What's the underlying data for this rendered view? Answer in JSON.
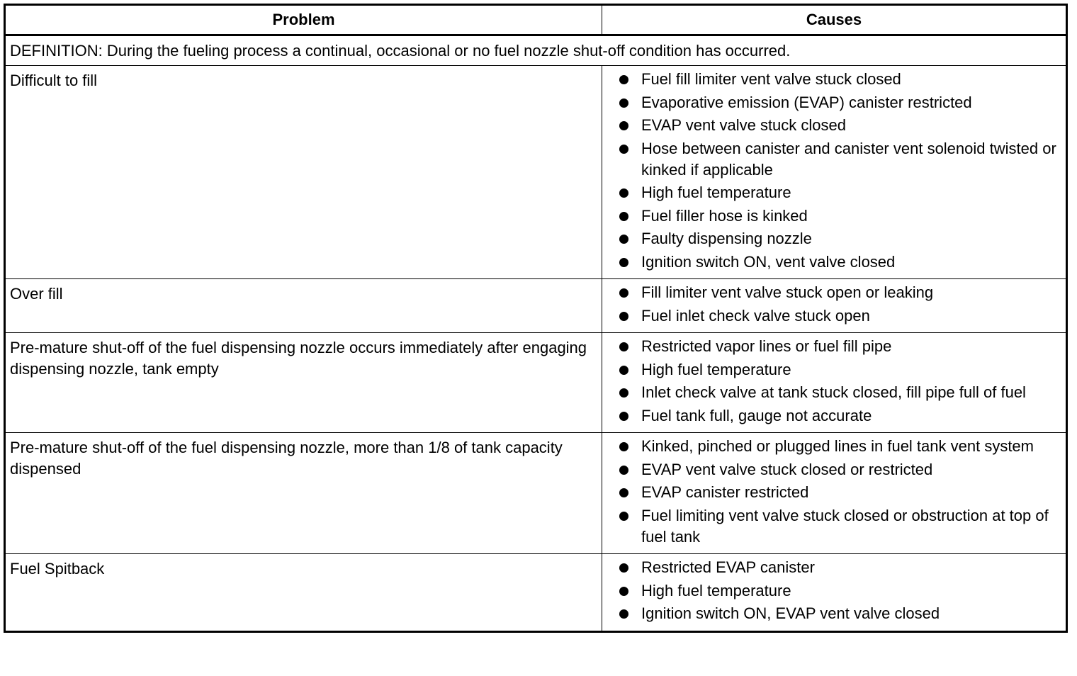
{
  "headers": {
    "problem": "Problem",
    "causes": "Causes"
  },
  "definition": "DEFINITION: During the fueling process a continual, occasional or no fuel nozzle shut-off condition has occurred.",
  "rows": [
    {
      "problem": "Difficult to fill",
      "causes": [
        "Fuel fill limiter vent valve stuck closed",
        "Evaporative emission (EVAP) canister restricted",
        "EVAP vent valve stuck closed",
        "Hose between canister and canister vent solenoid twisted or kinked if applicable",
        "High fuel temperature",
        "Fuel filler hose is kinked",
        "Faulty dispensing nozzle",
        "Ignition switch ON, vent valve closed"
      ]
    },
    {
      "problem": "Over fill",
      "causes": [
        "Fill limiter vent valve stuck open or leaking",
        "Fuel inlet check valve stuck open"
      ]
    },
    {
      "problem": "Pre-mature shut-off of the fuel dispensing nozzle occurs immediately after engaging dispensing nozzle, tank empty",
      "causes": [
        "Restricted vapor lines or fuel fill pipe",
        "High fuel temperature",
        "Inlet check valve at tank stuck closed, fill pipe full of fuel",
        "Fuel tank full, gauge not accurate"
      ]
    },
    {
      "problem": "Pre-mature shut-off of the fuel dispensing nozzle, more than 1/8 of tank capacity dispensed",
      "causes": [
        "Kinked, pinched or plugged lines in fuel tank vent system",
        "EVAP vent valve stuck closed or restricted",
        "EVAP canister restricted",
        "Fuel limiting vent valve stuck closed or obstruction at top of fuel tank"
      ]
    },
    {
      "problem": "Fuel Spitback",
      "causes": [
        "Restricted EVAP canister",
        "High fuel temperature",
        "Ignition switch ON, EVAP vent valve closed"
      ]
    }
  ]
}
